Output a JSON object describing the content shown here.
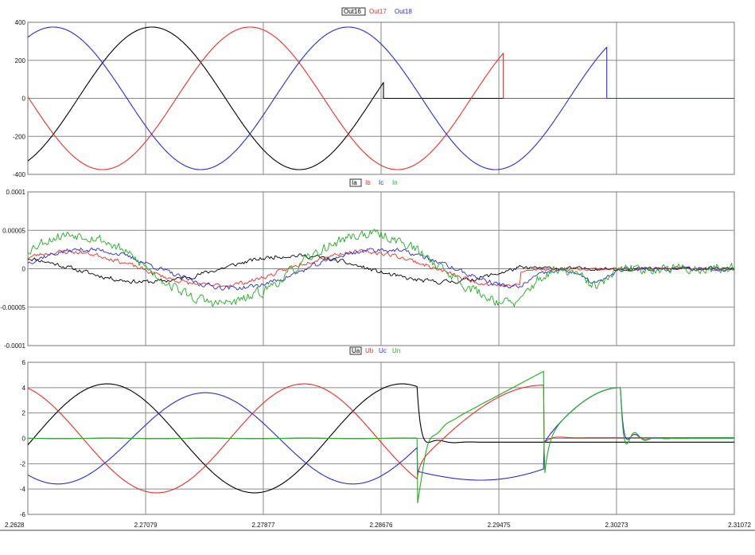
{
  "colors": {
    "black": "#000000",
    "red": "#e8302a",
    "blue": "#2b2bd6",
    "green": "#1fae1f",
    "grid": "#8a8a8a",
    "frame": "#777777"
  },
  "chart_data": [
    {
      "type": "line",
      "legend": [
        "Out16",
        "Out17",
        "Out18"
      ],
      "xlim": [
        2.2628,
        2.31072
      ],
      "ylim": [
        -400,
        400
      ],
      "ytick_labels": [
        "400",
        "200",
        "0",
        "-200",
        "-400"
      ],
      "ytick_values": [
        400,
        200,
        0,
        -200,
        -400
      ],
      "series": [
        {
          "name": "Out16",
          "color": "black",
          "kind": "sine-trip",
          "amp": 375,
          "phase": -1.95,
          "trip": 2.28692
        },
        {
          "name": "Out17",
          "color": "red",
          "kind": "sine-trip",
          "amp": 375,
          "phase": 2.24,
          "trip": 2.29505
        },
        {
          "name": "Out18",
          "color": "blue",
          "kind": "sine-trip",
          "amp": 375,
          "phase": 0.15,
          "trip": 2.30207
        }
      ]
    },
    {
      "type": "line",
      "legend": [
        "Ia",
        "Ib",
        "Ic",
        "In"
      ],
      "xlim": [
        2.2628,
        2.31072
      ],
      "ylim": [
        -0.0001,
        0.0001
      ],
      "ytick_labels": [
        "0.0001",
        "0.00005",
        "0",
        "-0.00005",
        "-0.0001"
      ],
      "ytick_values": [
        0.0001,
        5e-05,
        0,
        -5e-05,
        -0.0001
      ],
      "series": [
        {
          "name": "Ia",
          "color": "black",
          "kind": "noisy-current",
          "amp": 1.7e-05,
          "phase": 1.3,
          "noise": 4.5e-06,
          "fault": 2.2962,
          "post": "noise",
          "seed": 11
        },
        {
          "name": "Ib",
          "color": "red",
          "kind": "noisy-current",
          "amp": 2.2e-05,
          "phase": -0.15,
          "noise": 4.5e-06,
          "fault": 2.2962,
          "post": "flat",
          "seed": 23
        },
        {
          "name": "Ic",
          "color": "blue",
          "kind": "noisy-current",
          "amp": 2.5e-05,
          "phase": -0.55,
          "noise": 5e-06,
          "fault": 2.2962,
          "post": "dip",
          "seed": 37
        },
        {
          "name": "In",
          "color": "green",
          "kind": "noisy-current",
          "amp": 4.5e-05,
          "phase": -0.3,
          "noise": 1.1e-05,
          "fault": 2.2962,
          "post": "dipnoisy",
          "seed": 53
        }
      ]
    },
    {
      "type": "line",
      "legend": [
        "Ua",
        "Ub",
        "Uc",
        "Un"
      ],
      "xlim": [
        2.2628,
        2.31072
      ],
      "ylim": [
        -6,
        6
      ],
      "ytick_labels": [
        "6",
        "4",
        "2",
        "0",
        "-2",
        "-4",
        "-6"
      ],
      "ytick_values": [
        6,
        4,
        2,
        0,
        -2,
        -4,
        -6
      ],
      "series": [
        {
          "name": "Ua",
          "color": "black",
          "kind": "voltage-a"
        },
        {
          "name": "Ub",
          "color": "red",
          "kind": "voltage-b"
        },
        {
          "name": "Uc",
          "color": "blue",
          "kind": "voltage-c"
        },
        {
          "name": "Un",
          "color": "green",
          "kind": "voltage-n"
        }
      ]
    }
  ],
  "x_axis": {
    "tick_labels": [
      "2.2628",
      "2.27079",
      "2.27877",
      "2.28676",
      "2.29475",
      "2.30273",
      "2.31072"
    ],
    "tick_values": [
      2.2628,
      2.27079,
      2.27877,
      2.28676,
      2.29475,
      2.30273,
      2.31072
    ]
  }
}
